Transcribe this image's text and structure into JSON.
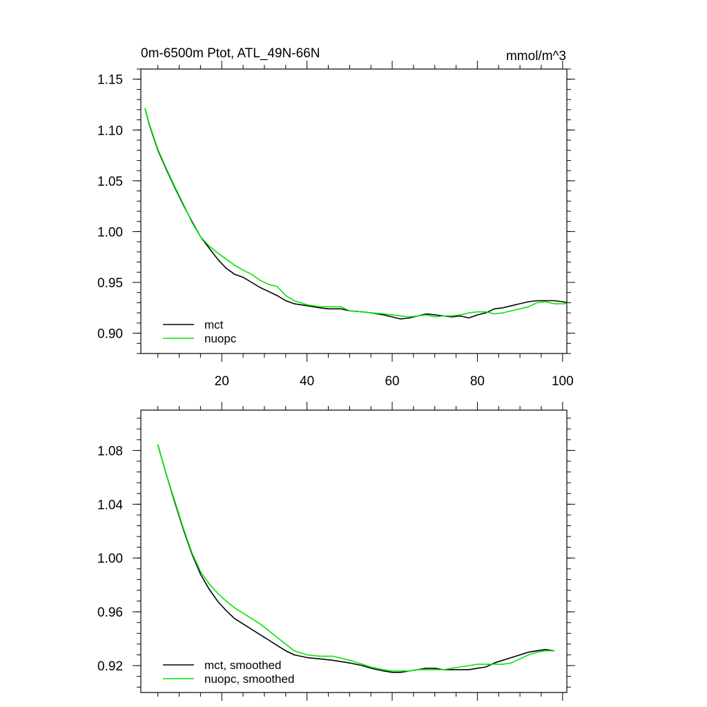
{
  "chart_data": [
    {
      "type": "line",
      "title": "0m-6500m Ptot, ATL_49N-66N",
      "units": "mmol/m^3",
      "xlim": [
        1,
        101
      ],
      "ylim": [
        0.88,
        1.16
      ],
      "x_ticks": [
        20,
        40,
        60,
        80,
        100
      ],
      "x_minor": [
        5,
        10,
        15,
        25,
        30,
        35,
        45,
        50,
        55,
        65,
        70,
        75,
        85,
        90,
        95
      ],
      "x_tick_labels": [
        "20",
        "40",
        "60",
        "80",
        "100"
      ],
      "y_ticks": [
        0.9,
        0.95,
        1.0,
        1.05,
        1.1,
        1.15
      ],
      "y_tick_labels": [
        "0.90",
        "0.95",
        "1.00",
        "1.05",
        "1.10",
        "1.15"
      ],
      "y_minor_step": 0.01,
      "legend_position": "bottom-left",
      "series": [
        {
          "name": "mct",
          "color": "#000000",
          "x": [
            2,
            3,
            5,
            7,
            9,
            11,
            13,
            15,
            17,
            19,
            21,
            23,
            25,
            27,
            29,
            31,
            33,
            35,
            37,
            40,
            43,
            45,
            48,
            50,
            53,
            55,
            58,
            60,
            62,
            64,
            66,
            68,
            70,
            72,
            74,
            76,
            78,
            80,
            82,
            84,
            86,
            88,
            90,
            92,
            94,
            96,
            98,
            100,
            101
          ],
          "values": [
            1.121,
            1.105,
            1.08,
            1.061,
            1.043,
            1.026,
            1.01,
            0.995,
            0.984,
            0.973,
            0.964,
            0.958,
            0.955,
            0.95,
            0.945,
            0.941,
            0.937,
            0.932,
            0.929,
            0.927,
            0.925,
            0.924,
            0.924,
            0.922,
            0.921,
            0.92,
            0.918,
            0.916,
            0.914,
            0.915,
            0.917,
            0.919,
            0.918,
            0.917,
            0.916,
            0.917,
            0.915,
            0.918,
            0.92,
            0.924,
            0.925,
            0.927,
            0.929,
            0.931,
            0.932,
            0.932,
            0.932,
            0.931,
            0.93
          ]
        },
        {
          "name": "nuopc",
          "color": "#00e600",
          "x": [
            2,
            3,
            5,
            7,
            9,
            11,
            13,
            15,
            17,
            19,
            21,
            23,
            25,
            27,
            29,
            31,
            33,
            35,
            37,
            40,
            43,
            45,
            48,
            50,
            53,
            55,
            58,
            60,
            62,
            64,
            66,
            68,
            70,
            72,
            74,
            76,
            78,
            80,
            82,
            84,
            86,
            88,
            90,
            92,
            94,
            96,
            98,
            100,
            101
          ],
          "values": [
            1.121,
            1.106,
            1.081,
            1.062,
            1.044,
            1.027,
            1.009,
            0.995,
            0.986,
            0.979,
            0.973,
            0.967,
            0.962,
            0.958,
            0.952,
            0.948,
            0.946,
            0.937,
            0.932,
            0.928,
            0.926,
            0.926,
            0.926,
            0.922,
            0.921,
            0.92,
            0.919,
            0.918,
            0.917,
            0.916,
            0.917,
            0.918,
            0.916,
            0.917,
            0.917,
            0.918,
            0.92,
            0.921,
            0.921,
            0.919,
            0.92,
            0.922,
            0.924,
            0.926,
            0.93,
            0.931,
            0.929,
            0.929,
            0.929
          ]
        }
      ]
    },
    {
      "type": "line",
      "title": "",
      "xlim": [
        1,
        101
      ],
      "ylim": [
        0.9,
        1.11
      ],
      "x_ticks": [
        20,
        40,
        60,
        80,
        100
      ],
      "x_minor": [
        5,
        10,
        15,
        25,
        30,
        35,
        45,
        50,
        55,
        65,
        70,
        75,
        85,
        90,
        95
      ],
      "x_tick_labels": [],
      "y_ticks": [
        0.92,
        0.96,
        1.0,
        1.04,
        1.08
      ],
      "y_tick_labels": [
        "0.92",
        "0.96",
        "1.00",
        "1.04",
        "1.08"
      ],
      "y_minor_step": 0.008,
      "legend_position": "bottom-left",
      "series": [
        {
          "name": "mct, smoothed",
          "color": "#000000",
          "x": [
            5,
            7,
            9,
            11,
            13,
            15,
            17,
            19,
            21,
            23,
            25,
            27,
            29,
            31,
            33,
            35,
            37,
            40,
            43,
            46,
            50,
            53,
            55,
            58,
            60,
            62,
            64,
            66,
            68,
            70,
            72,
            74,
            76,
            78,
            80,
            82,
            84,
            86,
            88,
            90,
            92,
            94,
            96,
            98
          ],
          "values": [
            1.084,
            1.062,
            1.041,
            1.021,
            1.003,
            0.988,
            0.977,
            0.968,
            0.961,
            0.955,
            0.951,
            0.947,
            0.943,
            0.939,
            0.935,
            0.931,
            0.928,
            0.926,
            0.925,
            0.924,
            0.922,
            0.92,
            0.918,
            0.916,
            0.915,
            0.915,
            0.916,
            0.917,
            0.918,
            0.918,
            0.917,
            0.917,
            0.917,
            0.917,
            0.918,
            0.919,
            0.922,
            0.924,
            0.926,
            0.928,
            0.93,
            0.931,
            0.932,
            0.931
          ]
        },
        {
          "name": "nuopc, smoothed",
          "color": "#00e600",
          "x": [
            5,
            7,
            9,
            11,
            13,
            15,
            17,
            19,
            21,
            23,
            25,
            27,
            29,
            31,
            33,
            35,
            37,
            40,
            43,
            46,
            50,
            53,
            55,
            58,
            60,
            62,
            64,
            66,
            68,
            70,
            72,
            74,
            76,
            78,
            80,
            82,
            84,
            86,
            88,
            90,
            92,
            94,
            96,
            98
          ],
          "values": [
            1.084,
            1.062,
            1.042,
            1.022,
            1.004,
            0.99,
            0.981,
            0.974,
            0.968,
            0.963,
            0.959,
            0.955,
            0.951,
            0.946,
            0.941,
            0.936,
            0.931,
            0.928,
            0.927,
            0.927,
            0.924,
            0.921,
            0.919,
            0.917,
            0.916,
            0.916,
            0.916,
            0.917,
            0.917,
            0.917,
            0.917,
            0.918,
            0.919,
            0.92,
            0.921,
            0.921,
            0.921,
            0.921,
            0.922,
            0.925,
            0.928,
            0.93,
            0.931,
            0.931
          ]
        }
      ]
    }
  ]
}
